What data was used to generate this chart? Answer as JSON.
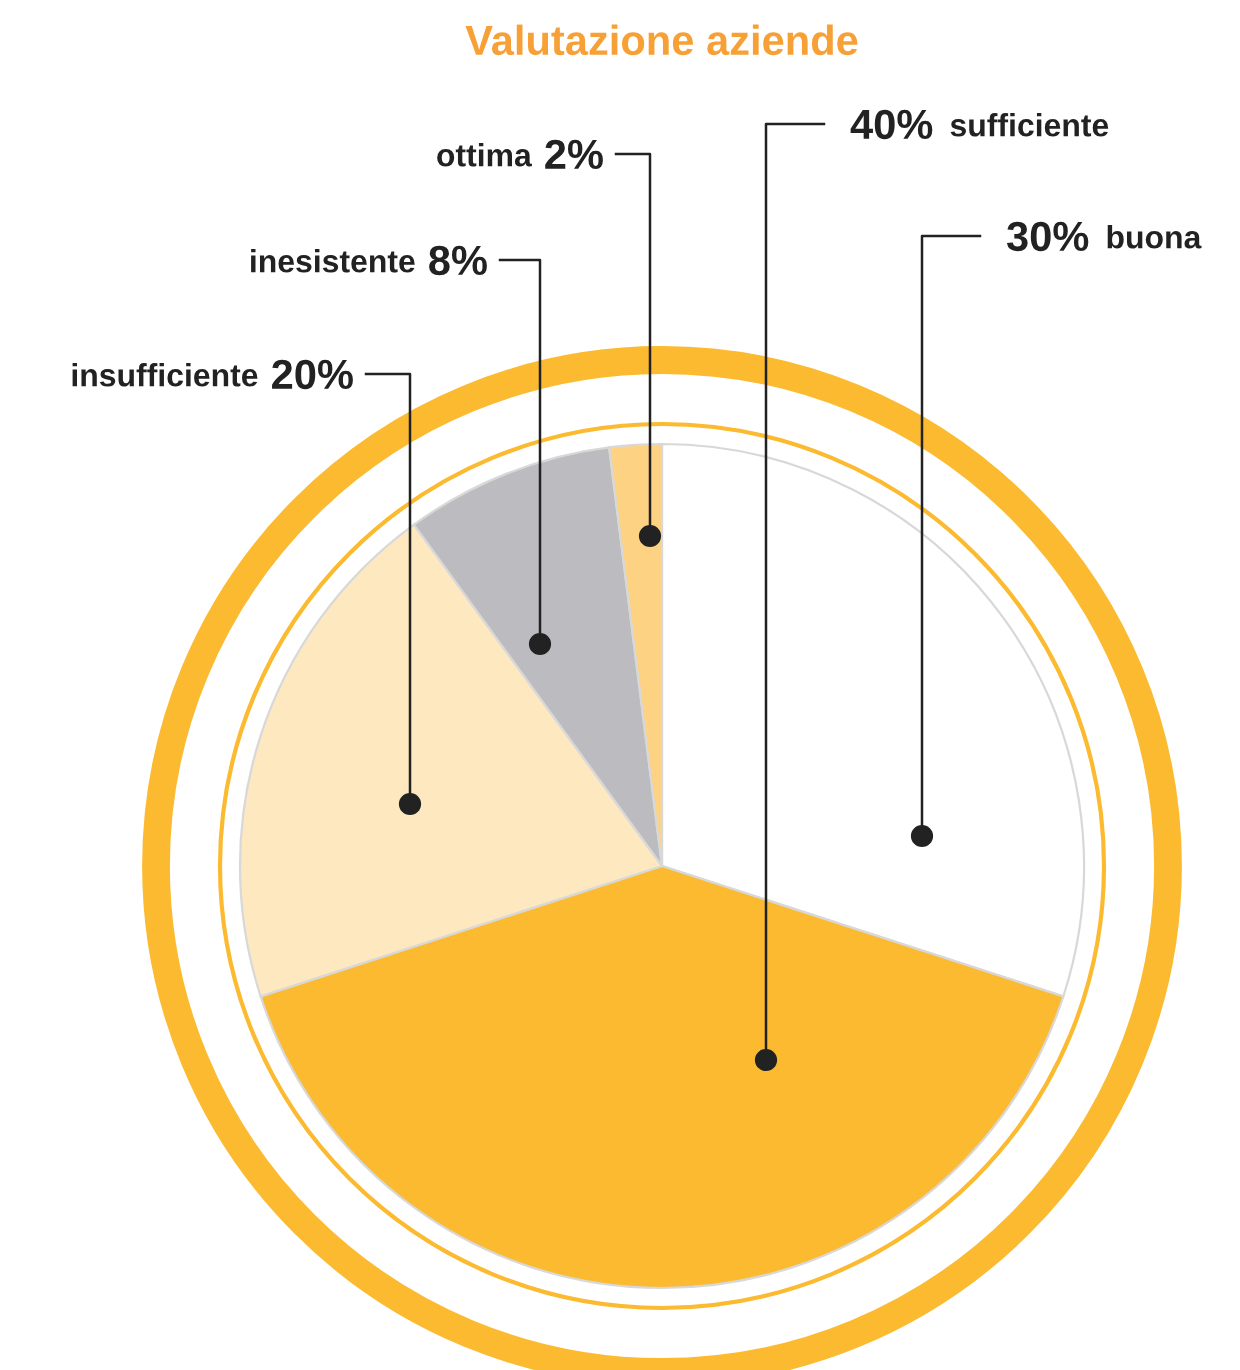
{
  "chart_data": {
    "type": "pie",
    "title": "Valutazione aziende",
    "categories": [
      "buona",
      "sufficiente",
      "insufficiente",
      "inesistente",
      "ottima"
    ],
    "values": [
      30,
      40,
      20,
      8,
      2
    ],
    "value_labels": [
      "30%",
      "40%",
      "20%",
      "8%",
      "2%"
    ],
    "colors": [
      "#ffffff",
      "#fbba2f",
      "#fde8c0",
      "#bcbcc0",
      "#fdd282"
    ]
  }
}
